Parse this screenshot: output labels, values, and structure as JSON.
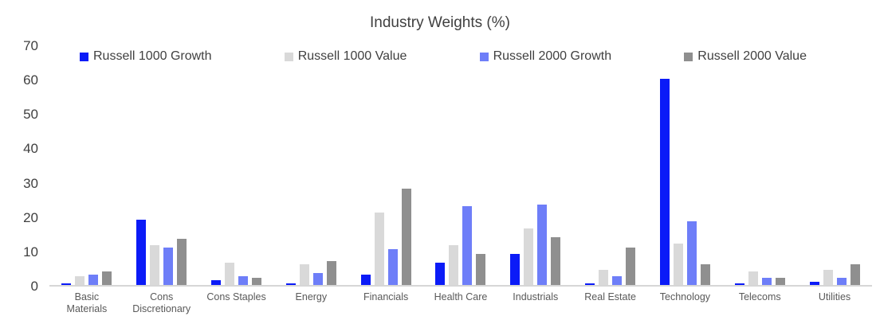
{
  "title": "Industry Weights (%)",
  "chart_data": {
    "type": "bar",
    "title": "Industry Weights (%)",
    "categories": [
      "Basic\nMaterials",
      "Cons\nDiscretionary",
      "Cons Staples",
      "Energy",
      "Financials",
      "Health Care",
      "Industrials",
      "Real Estate",
      "Technology",
      "Telecoms",
      "Utilities"
    ],
    "series": [
      {
        "name": "Russell 1000 Growth",
        "color": "#0b1bf7",
        "values": [
          0.5,
          19,
          1.5,
          0.5,
          3,
          6.5,
          9,
          0.5,
          60,
          0.5,
          1
        ]
      },
      {
        "name": "Russell 1000 Value",
        "color": "#d9d9d9",
        "values": [
          2.5,
          11.5,
          6.5,
          6,
          21,
          11.5,
          16.5,
          4.5,
          12,
          4,
          4.5
        ]
      },
      {
        "name": "Russell 2000 Growth",
        "color": "#6e7ef8",
        "values": [
          3,
          11,
          2.5,
          3.5,
          10.5,
          23,
          23.5,
          2.5,
          18.5,
          2,
          2
        ]
      },
      {
        "name": "Russell 2000 Value",
        "color": "#8f8f8f",
        "values": [
          4,
          13.5,
          2,
          7,
          28,
          9,
          14,
          11,
          6,
          2,
          6
        ]
      }
    ],
    "xlabel": "",
    "ylabel": "",
    "ylim": [
      0,
      70
    ],
    "yticks": [
      0,
      10,
      20,
      30,
      40,
      50,
      60,
      70
    ],
    "grid": false,
    "legend_position": "top"
  },
  "colors": {
    "title_text": "#404040",
    "axis_text": "#595959",
    "baseline": "#d6d6d6",
    "background": "#ffffff"
  }
}
